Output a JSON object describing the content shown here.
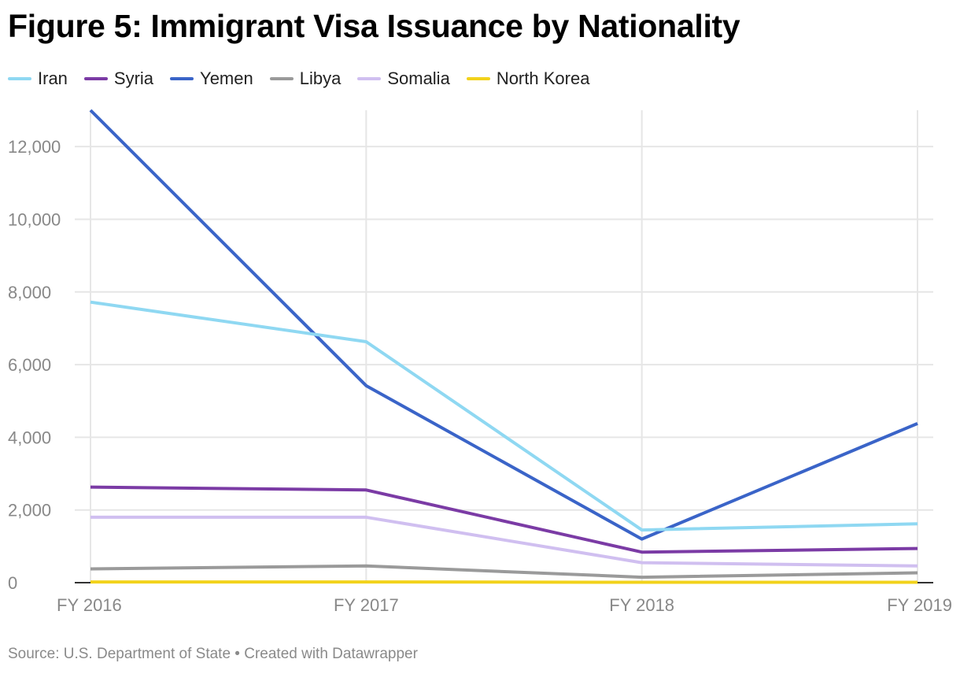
{
  "chart_data": {
    "type": "line",
    "title": "Figure 5: Immigrant Visa Issuance by Nationality",
    "categories": [
      "FY 2016",
      "FY 2017",
      "FY 2018",
      "FY 2019"
    ],
    "ylim": [
      0,
      13000
    ],
    "yticks": [
      0,
      2000,
      4000,
      6000,
      8000,
      10000,
      12000
    ],
    "ytick_labels": [
      "0",
      "2,000",
      "4,000",
      "6,000",
      "8,000",
      "10,000",
      "12,000"
    ],
    "xlabel": "",
    "ylabel": "",
    "grid": true,
    "legend_position": "top-left",
    "series": [
      {
        "name": "Iran",
        "color": "#8fd8f2",
        "values": [
          7720,
          6630,
          1450,
          1620
        ]
      },
      {
        "name": "Syria",
        "color": "#7b3ba5",
        "values": [
          2630,
          2550,
          840,
          940
        ]
      },
      {
        "name": "Yemen",
        "color": "#3a64c8",
        "values": [
          13000,
          5420,
          1200,
          4380
        ]
      },
      {
        "name": "Libya",
        "color": "#9a9a9a",
        "values": [
          380,
          460,
          150,
          270
        ]
      },
      {
        "name": "Somalia",
        "color": "#d0bff0",
        "values": [
          1800,
          1800,
          550,
          460
        ]
      },
      {
        "name": "North Korea",
        "color": "#f2d21b",
        "values": [
          20,
          20,
          10,
          10
        ]
      }
    ],
    "source": "Source: U.S. Department of State • Created with Datawrapper"
  }
}
